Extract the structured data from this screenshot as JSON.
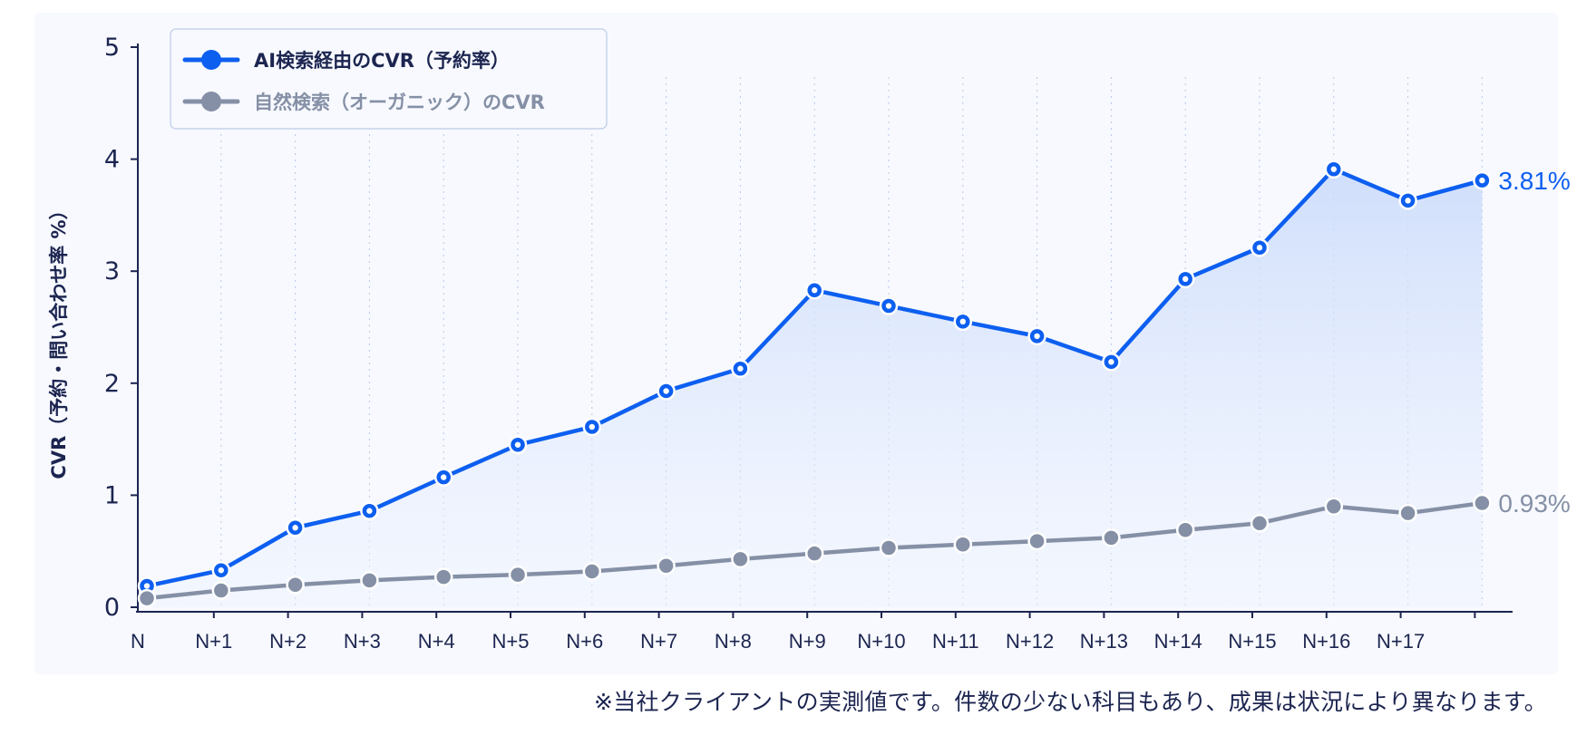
{
  "chart_data": {
    "type": "line",
    "categories": [
      "N",
      "N+1",
      "N+2",
      "N+3",
      "N+4",
      "N+5",
      "N+6",
      "N+7",
      "N+8",
      "N+9",
      "N+10",
      "N+11",
      "N+12",
      "N+13",
      "N+14",
      "N+15",
      "N+16",
      "N+17",
      ""
    ],
    "ylabel": "CVR（予約・問い合わせ率 %）",
    "ylim": [
      0,
      5
    ],
    "yticks": [
      "0",
      "1",
      "2",
      "3",
      "4",
      "5"
    ],
    "grid": "vertical dotted",
    "legend_position": "top-left",
    "series": [
      {
        "name": "AI検索経由のCVR（予約率）",
        "color": "#0d5ff0",
        "area": true,
        "values": [
          0.19,
          0.33,
          0.71,
          0.86,
          1.16,
          1.45,
          1.61,
          1.93,
          2.13,
          2.83,
          2.69,
          2.55,
          2.42,
          2.19,
          2.93,
          3.21,
          3.91,
          3.63,
          3.81
        ],
        "end_label": "3.81%"
      },
      {
        "name": "自然検索（オーガニック）のCVR",
        "color": "#8590a6",
        "area": false,
        "values": [
          0.08,
          0.15,
          0.2,
          0.24,
          0.27,
          0.29,
          0.32,
          0.37,
          0.43,
          0.48,
          0.53,
          0.56,
          0.59,
          0.62,
          0.69,
          0.75,
          0.9,
          0.84,
          0.93
        ],
        "end_label": "0.93%"
      }
    ]
  },
  "footnote": "※当社クライアントの実測値です。件数の少ない科目もあり、成果は状況により異なります。"
}
